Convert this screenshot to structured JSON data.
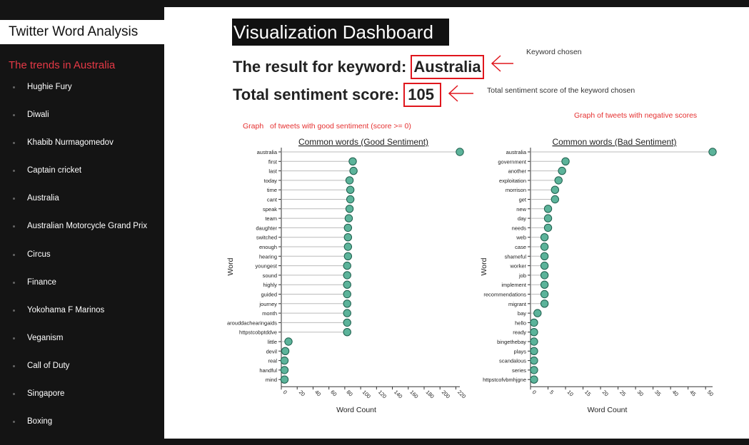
{
  "sidebar": {
    "title": "Twitter Word Analysis",
    "trends_heading": "The trends in Australia",
    "trends": [
      "Hughie Fury",
      "Diwali",
      "Khabib Nurmagomedov",
      "Captain cricket",
      "Australia",
      "Australian Motorcycle Grand Prix",
      "Circus",
      "Finance",
      "Yokohama F Marinos",
      "Veganism",
      "Call of Duty",
      "Singapore",
      "Boxing"
    ]
  },
  "main": {
    "title": "Visualization Dashboard",
    "keyword_prefix": "The result for keyword:",
    "keyword": "Australia",
    "score_prefix": "Total sentiment score:",
    "score": "105",
    "annotations": {
      "keyword_chosen": "Keyword chosen",
      "score_note": "Total sentiment score of the keyword chosen",
      "graph_good_prefix": "Graph",
      "graph_good_rest": "of tweets with good sentiment (score >= 0)",
      "graph_bad": "Graph of tweets with negative scores"
    }
  },
  "colors": {
    "accent_red": "#e0161d",
    "dot_fill": "#5cb39a",
    "dot_stroke": "#1d5e4c",
    "sidebar_bg": "#141414"
  },
  "chart_data": [
    {
      "type": "scatter",
      "title": "Common words (Good Sentiment)",
      "xlabel": "Word Count",
      "ylabel": "Word",
      "xlim": [
        0,
        225
      ],
      "xticks": [
        0,
        20,
        40,
        60,
        80,
        100,
        120,
        140,
        160,
        180,
        200,
        220
      ],
      "categories": [
        "australia",
        "first",
        "last",
        "today",
        "time",
        "cant",
        "speak",
        "team",
        "daughter",
        "switched",
        "enough",
        "hearing",
        "youngest",
        "sound",
        "highly",
        "guided",
        "journey",
        "month",
        "arouddachearingaids",
        "httpstcobptddve",
        "little",
        "devil",
        "real",
        "handful",
        "mind"
      ],
      "values": [
        225,
        90,
        91,
        86,
        87,
        87,
        86,
        85,
        84,
        84,
        84,
        84,
        83,
        83,
        83,
        83,
        83,
        83,
        83,
        83,
        9,
        5,
        4,
        4,
        4
      ]
    },
    {
      "type": "scatter",
      "title": "Common words (Bad Sentiment)",
      "xlabel": "Word Count",
      "ylabel": "Word",
      "xlim": [
        0,
        52
      ],
      "xticks": [
        0,
        5,
        10,
        15,
        20,
        25,
        30,
        35,
        40,
        45,
        50
      ],
      "categories": [
        "australia",
        "government",
        "another",
        "exploitation",
        "morrison",
        "get",
        "new",
        "day",
        "needs",
        "web",
        "case",
        "shameful",
        "worker",
        "job",
        "implement",
        "recommendations",
        "migrant",
        "bay",
        "hello",
        "ready",
        "bingethebay",
        "plays",
        "scandalous",
        "series",
        "httpstcofvbmhjgne"
      ],
      "values": [
        52,
        10,
        9,
        8,
        7,
        7,
        5,
        5,
        5,
        4,
        4,
        4,
        4,
        4,
        4,
        4,
        4,
        2,
        1,
        1,
        1,
        1,
        1,
        1,
        1
      ]
    }
  ]
}
